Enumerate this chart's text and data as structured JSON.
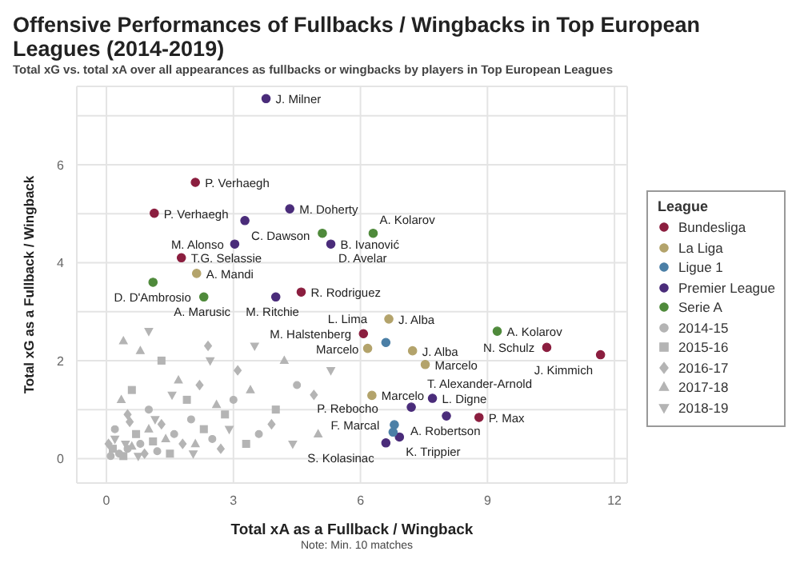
{
  "chart_data": {
    "type": "scatter",
    "title": "Offensive Performances of Fullbacks / Wingbacks in Top European Leagues (2014-2019)",
    "subtitle": "Total xG vs. total xA over all appearances as fullbacks or wingbacks by players in Top European Leagues",
    "xlabel": "Total xA as a Fullback / Wingback",
    "ylabel": "Total xG as a Fullback / Wingback",
    "legend_title": "League",
    "legend": "right",
    "grid": true,
    "xlim": [
      -0.7,
      12.3
    ],
    "xticks": [
      0,
      3,
      6,
      9,
      12
    ],
    "ylim": [
      -0.5,
      7.6
    ],
    "yticks": [
      0,
      {
        "value": 1,
        "label": null
      },
      2,
      {
        "value": 3,
        "label": null
      },
      4,
      {
        "value": 5,
        "label": null
      },
      6,
      {
        "value": 7,
        "label": null
      }
    ],
    "series": [
      {
        "name": "Bundesliga",
        "color": "#8b1e3f",
        "marker": "circle",
        "x": [
          2.1,
          1.13,
          1.77,
          4.6,
          6.07,
          10.4,
          11.67,
          8.8
        ],
        "values": [
          5.64,
          5.01,
          4.1,
          3.4,
          2.55,
          2.27,
          2.12,
          0.84
        ]
      },
      {
        "name": "La Liga",
        "color": "#b3a36b",
        "marker": "circle",
        "x": [
          2.13,
          6.67,
          6.17,
          7.23,
          7.53,
          6.27
        ],
        "values": [
          3.78,
          2.85,
          2.25,
          2.2,
          1.92,
          1.29
        ]
      },
      {
        "name": "Ligue 1",
        "color": "#4b7fa6",
        "marker": "circle",
        "x": [
          6.6,
          6.8,
          6.77
        ],
        "values": [
          2.37,
          0.69,
          0.54
        ]
      },
      {
        "name": "Premier League",
        "color": "#4a2c7a",
        "marker": "circle",
        "x": [
          3.77,
          4.33,
          3.27,
          5.3,
          3.03,
          4.0,
          7.2,
          7.7,
          8.03,
          6.92,
          6.6
        ],
        "values": [
          7.35,
          5.1,
          4.86,
          4.38,
          4.38,
          3.3,
          1.05,
          1.23,
          0.87,
          0.44,
          0.32
        ]
      },
      {
        "name": "Serie A",
        "color": "#4f8a3b",
        "marker": "circle",
        "x": [
          5.1,
          6.3,
          9.23,
          1.1,
          2.3
        ],
        "values": [
          4.6,
          4.6,
          2.6,
          3.6,
          3.3
        ]
      },
      {
        "name": "2014-15",
        "color": "#b4b4b4",
        "marker": "circle",
        "x": [
          0.1,
          0.3,
          0.5,
          0.8,
          1.2,
          1.6,
          2.0,
          2.5,
          3.0,
          0.2,
          1.0,
          3.6,
          4.5
        ],
        "values": [
          0.05,
          0.1,
          0.2,
          0.3,
          0.15,
          0.5,
          0.8,
          0.4,
          1.2,
          0.6,
          1.0,
          0.5,
          1.5
        ]
      },
      {
        "name": "2015-16",
        "color": "#b4b4b4",
        "marker": "square",
        "x": [
          0.15,
          0.4,
          0.7,
          1.1,
          1.5,
          1.9,
          2.3,
          2.8,
          3.3,
          0.6,
          4.0,
          1.3
        ],
        "values": [
          0.2,
          0.05,
          0.5,
          0.35,
          0.1,
          1.2,
          0.6,
          0.9,
          0.3,
          1.4,
          1.0,
          2.0
        ]
      },
      {
        "name": "2016-17",
        "color": "#b4b4b4",
        "marker": "diamond",
        "x": [
          0.05,
          0.55,
          0.9,
          1.3,
          1.8,
          2.2,
          2.7,
          3.1,
          3.9,
          0.5,
          4.9,
          2.4
        ],
        "values": [
          0.3,
          0.75,
          0.1,
          0.7,
          0.3,
          1.5,
          0.2,
          1.8,
          0.7,
          0.9,
          1.3,
          2.3
        ]
      },
      {
        "name": "2017-18",
        "color": "#b4b4b4",
        "marker": "triangle",
        "x": [
          0.35,
          0.6,
          1.0,
          1.4,
          1.7,
          2.1,
          2.6,
          3.4,
          0.8,
          0.4,
          4.2,
          5.0
        ],
        "values": [
          1.2,
          0.25,
          0.6,
          0.4,
          1.6,
          0.3,
          1.1,
          1.4,
          2.2,
          2.4,
          2.0,
          0.5
        ]
      },
      {
        "name": "2018-19",
        "color": "#b4b4b4",
        "marker": "triangle-down",
        "x": [
          0.2,
          0.45,
          0.75,
          1.15,
          1.55,
          2.05,
          2.45,
          2.9,
          3.5,
          4.4,
          1.0,
          5.3
        ],
        "values": [
          0.4,
          0.3,
          0.05,
          0.8,
          1.3,
          0.1,
          2.0,
          0.6,
          2.3,
          0.3,
          2.6,
          1.8
        ]
      }
    ],
    "annotations": [
      {
        "text": "P. Verhaegh",
        "x": 2.1,
        "y": 5.64
      },
      {
        "text": "P. Verhaegh",
        "x": 1.13,
        "y": 5.01
      },
      {
        "text": "T.G. Selassie",
        "x": 1.77,
        "y": 4.1
      },
      {
        "text": "R. Rodriguez",
        "x": 4.6,
        "y": 3.4
      },
      {
        "text": "M. Halstenberg",
        "x": 6.07,
        "y": 2.55
      },
      {
        "text": "N. Schulz",
        "x": 10.4,
        "y": 2.27
      },
      {
        "text": "J. Kimmich",
        "x": 11.67,
        "y": 2.12
      },
      {
        "text": "P. Max",
        "x": 8.8,
        "y": 0.84
      },
      {
        "text": "A. Mandi",
        "x": 2.13,
        "y": 3.78
      },
      {
        "text": "J. Alba",
        "x": 6.67,
        "y": 2.85
      },
      {
        "text": "Marcelo",
        "x": 6.17,
        "y": 2.25
      },
      {
        "text": "J. Alba",
        "x": 7.23,
        "y": 2.2
      },
      {
        "text": "Marcelo",
        "x": 7.53,
        "y": 1.92
      },
      {
        "text": "Marcelo",
        "x": 6.27,
        "y": 1.29
      },
      {
        "text": "L. Lima",
        "x": 6.6,
        "y": 2.37
      },
      {
        "text": "F. Marcal",
        "x": 6.8,
        "y": 0.69
      },
      {
        "text": "P. Rebocho",
        "x": 6.77,
        "y": 0.54
      },
      {
        "text": "J. Milner",
        "x": 3.77,
        "y": 7.35
      },
      {
        "text": "M. Doherty",
        "x": 4.33,
        "y": 5.1
      },
      {
        "text": "C. Dawson",
        "x": 3.27,
        "y": 4.86
      },
      {
        "text": "B. Ivanović",
        "x": 5.3,
        "y": 4.38
      },
      {
        "text": "M. Alonso",
        "x": 3.03,
        "y": 4.38
      },
      {
        "text": "M. Ritchie",
        "x": 4.0,
        "y": 3.3
      },
      {
        "text": "T. Alexander-Arnold",
        "x": 7.2,
        "y": 1.05
      },
      {
        "text": "L. Digne",
        "x": 7.7,
        "y": 1.23
      },
      {
        "text": "A. Robertson",
        "x": 8.03,
        "y": 0.87
      },
      {
        "text": "K. Trippier",
        "x": 6.92,
        "y": 0.44
      },
      {
        "text": "S. Kolasinac",
        "x": 6.6,
        "y": 0.32
      },
      {
        "text": "D. Avelar",
        "x": 5.1,
        "y": 4.6
      },
      {
        "text": "A. Kolarov",
        "x": 6.3,
        "y": 4.6
      },
      {
        "text": "A. Kolarov",
        "x": 9.23,
        "y": 2.6
      },
      {
        "text": "D. D'Ambrosio",
        "x": 1.1,
        "y": 3.6
      },
      {
        "text": "A. Marusic",
        "x": 2.3,
        "y": 3.3
      },
      "Note: Min. 10 matches"
    ]
  }
}
